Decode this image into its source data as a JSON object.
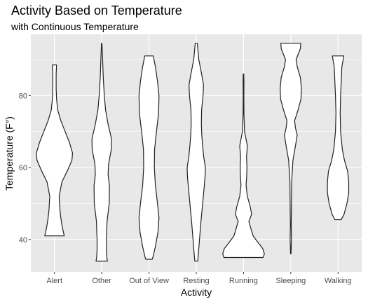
{
  "chart_data": {
    "type": "violin",
    "title": "Activity Based on Temperature",
    "subtitle": "with Continuous Temperature",
    "xlabel": "Activity",
    "ylabel": "Temperature (F°)",
    "categories": [
      "Alert",
      "Other",
      "Out of View",
      "Resting",
      "Running",
      "Sleeping",
      "Walking"
    ],
    "ylim": [
      31,
      97
    ],
    "yticks": [
      40,
      60,
      80
    ],
    "grid": true,
    "colors": {
      "panel": "#e8e8e8",
      "grid": "#ffffff",
      "fill": "#ffffff",
      "outline": "#222222"
    },
    "violins": [
      {
        "category": "Alert",
        "y_min": 41,
        "y_max": 88.5,
        "profile": [
          [
            41,
            0.46
          ],
          [
            42,
            0.42
          ],
          [
            44,
            0.35
          ],
          [
            46,
            0.3
          ],
          [
            48,
            0.26
          ],
          [
            52,
            0.22
          ],
          [
            56,
            0.35
          ],
          [
            59,
            0.6
          ],
          [
            62,
            0.82
          ],
          [
            64,
            0.85
          ],
          [
            67,
            0.7
          ],
          [
            70,
            0.5
          ],
          [
            73,
            0.3
          ],
          [
            76,
            0.15
          ],
          [
            79,
            0.1
          ],
          [
            82,
            0.08
          ],
          [
            86,
            0.08
          ],
          [
            88.5,
            0.1
          ]
        ]
      },
      {
        "category": "Other",
        "y_min": 34,
        "y_max": 94.5,
        "profile": [
          [
            34,
            0.27
          ],
          [
            35,
            0.24
          ],
          [
            37,
            0.22
          ],
          [
            40,
            0.22
          ],
          [
            45,
            0.25
          ],
          [
            50,
            0.35
          ],
          [
            55,
            0.36
          ],
          [
            58,
            0.3
          ],
          [
            61,
            0.32
          ],
          [
            65,
            0.45
          ],
          [
            68,
            0.46
          ],
          [
            72,
            0.3
          ],
          [
            76,
            0.18
          ],
          [
            80,
            0.12
          ],
          [
            85,
            0.07
          ],
          [
            90,
            0.04
          ],
          [
            94.5,
            0.01
          ]
        ]
      },
      {
        "category": "Out of View",
        "y_min": 34.5,
        "y_max": 91,
        "profile": [
          [
            34.5,
            0.15
          ],
          [
            35,
            0.18
          ],
          [
            38,
            0.3
          ],
          [
            42,
            0.42
          ],
          [
            46,
            0.47
          ],
          [
            50,
            0.4
          ],
          [
            55,
            0.3
          ],
          [
            60,
            0.25
          ],
          [
            65,
            0.26
          ],
          [
            70,
            0.35
          ],
          [
            75,
            0.45
          ],
          [
            80,
            0.47
          ],
          [
            84,
            0.4
          ],
          [
            88,
            0.3
          ],
          [
            91,
            0.2
          ]
        ]
      },
      {
        "category": "Resting",
        "y_min": 34,
        "y_max": 94.5,
        "profile": [
          [
            34,
            0.07
          ],
          [
            36,
            0.1
          ],
          [
            40,
            0.15
          ],
          [
            45,
            0.22
          ],
          [
            50,
            0.3
          ],
          [
            55,
            0.38
          ],
          [
            58,
            0.42
          ],
          [
            60,
            0.43
          ],
          [
            63,
            0.35
          ],
          [
            66,
            0.3
          ],
          [
            69,
            0.26
          ],
          [
            72,
            0.24
          ],
          [
            76,
            0.25
          ],
          [
            80,
            0.32
          ],
          [
            83,
            0.34
          ],
          [
            86,
            0.25
          ],
          [
            90,
            0.12
          ],
          [
            94.5,
            0.05
          ]
        ]
      },
      {
        "category": "Running",
        "y_min": 35,
        "y_max": 86,
        "profile": [
          [
            35,
            0.92
          ],
          [
            36,
            0.98
          ],
          [
            37.5,
            0.9
          ],
          [
            39,
            0.7
          ],
          [
            41,
            0.45
          ],
          [
            43,
            0.35
          ],
          [
            45,
            0.25
          ],
          [
            47,
            0.38
          ],
          [
            49,
            0.32
          ],
          [
            52,
            0.18
          ],
          [
            55,
            0.12
          ],
          [
            58,
            0.15
          ],
          [
            60,
            0.16
          ],
          [
            63,
            0.14
          ],
          [
            66,
            0.18
          ],
          [
            70,
            0.05
          ],
          [
            75,
            0.02
          ],
          [
            80,
            0.015
          ],
          [
            84,
            0.02
          ],
          [
            86,
            0.01
          ]
        ]
      },
      {
        "category": "Sleeping",
        "y_min": 36,
        "y_max": 94.5,
        "profile": [
          [
            36,
            0.01
          ],
          [
            40,
            0.03
          ],
          [
            44,
            0.02
          ],
          [
            50,
            0.03
          ],
          [
            56,
            0.04
          ],
          [
            62,
            0.1
          ],
          [
            66,
            0.22
          ],
          [
            69,
            0.3
          ],
          [
            71,
            0.22
          ],
          [
            73,
            0.18
          ],
          [
            76,
            0.34
          ],
          [
            79,
            0.48
          ],
          [
            82,
            0.5
          ],
          [
            85,
            0.45
          ],
          [
            88,
            0.3
          ],
          [
            90,
            0.25
          ],
          [
            93,
            0.45
          ],
          [
            94.5,
            0.47
          ]
        ]
      },
      {
        "category": "Walking",
        "y_min": 45.5,
        "y_max": 91,
        "profile": [
          [
            45.5,
            0.15
          ],
          [
            47,
            0.28
          ],
          [
            50,
            0.42
          ],
          [
            53,
            0.5
          ],
          [
            56,
            0.5
          ],
          [
            59,
            0.45
          ],
          [
            62,
            0.3
          ],
          [
            65,
            0.2
          ],
          [
            70,
            0.12
          ],
          [
            75,
            0.1
          ],
          [
            80,
            0.12
          ],
          [
            84,
            0.15
          ],
          [
            88,
            0.18
          ],
          [
            91,
            0.27
          ]
        ]
      }
    ]
  }
}
